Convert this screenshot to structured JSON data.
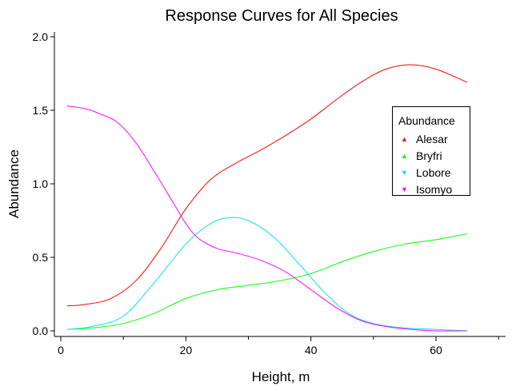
{
  "chart_data": {
    "type": "line",
    "title": "Response Curves for All Species",
    "xlabel": "Height, m",
    "ylabel": "Abundance",
    "xlim": [
      0,
      70
    ],
    "ylim": [
      0,
      2.0
    ],
    "xticks": [
      0,
      20,
      40,
      60
    ],
    "yticks": [
      0.0,
      0.5,
      1.0,
      1.5,
      2.0
    ],
    "ytick_labels": [
      "0.0",
      "0.5",
      "1.0",
      "1.5",
      "2.0"
    ],
    "grid": false,
    "legend": {
      "title": "Abundance",
      "placement": "right"
    },
    "series": [
      {
        "name": "Alesar",
        "color": "#ff0000",
        "marker": "triangle-up",
        "x": [
          1,
          4,
          8,
          12,
          16,
          20,
          24,
          28,
          32,
          36,
          40,
          44,
          48,
          52,
          56,
          60,
          65
        ],
        "y": [
          0.17,
          0.18,
          0.22,
          0.34,
          0.56,
          0.83,
          1.03,
          1.14,
          1.23,
          1.33,
          1.44,
          1.57,
          1.69,
          1.78,
          1.81,
          1.78,
          1.69
        ]
      },
      {
        "name": "Bryfri",
        "color": "#00ff00",
        "marker": "triangle-up",
        "x": [
          1,
          5,
          10,
          15,
          20,
          25,
          30,
          35,
          40,
          45,
          50,
          55,
          60,
          65
        ],
        "y": [
          0.01,
          0.02,
          0.05,
          0.12,
          0.22,
          0.28,
          0.31,
          0.34,
          0.39,
          0.47,
          0.54,
          0.59,
          0.62,
          0.66
        ]
      },
      {
        "name": "Lobore",
        "color": "#00e5e5",
        "marker": "triangle-down",
        "x": [
          1,
          5,
          10,
          15,
          20,
          24,
          27,
          30,
          34,
          38,
          42,
          46,
          50,
          55,
          60,
          65
        ],
        "y": [
          0.01,
          0.03,
          0.1,
          0.33,
          0.59,
          0.73,
          0.77,
          0.75,
          0.64,
          0.46,
          0.27,
          0.12,
          0.05,
          0.02,
          0.01,
          0.0
        ]
      },
      {
        "name": "Isomyo",
        "color": "#ff00ff",
        "marker": "triangle-down",
        "x": [
          1,
          4,
          6,
          9,
          12,
          15,
          18,
          20,
          22,
          25,
          28,
          32,
          36,
          40,
          44,
          48,
          52,
          56,
          60,
          65
        ],
        "y": [
          1.53,
          1.51,
          1.48,
          1.42,
          1.28,
          1.08,
          0.87,
          0.73,
          0.63,
          0.56,
          0.53,
          0.48,
          0.4,
          0.28,
          0.16,
          0.07,
          0.03,
          0.01,
          0.0,
          0.0
        ]
      }
    ]
  }
}
